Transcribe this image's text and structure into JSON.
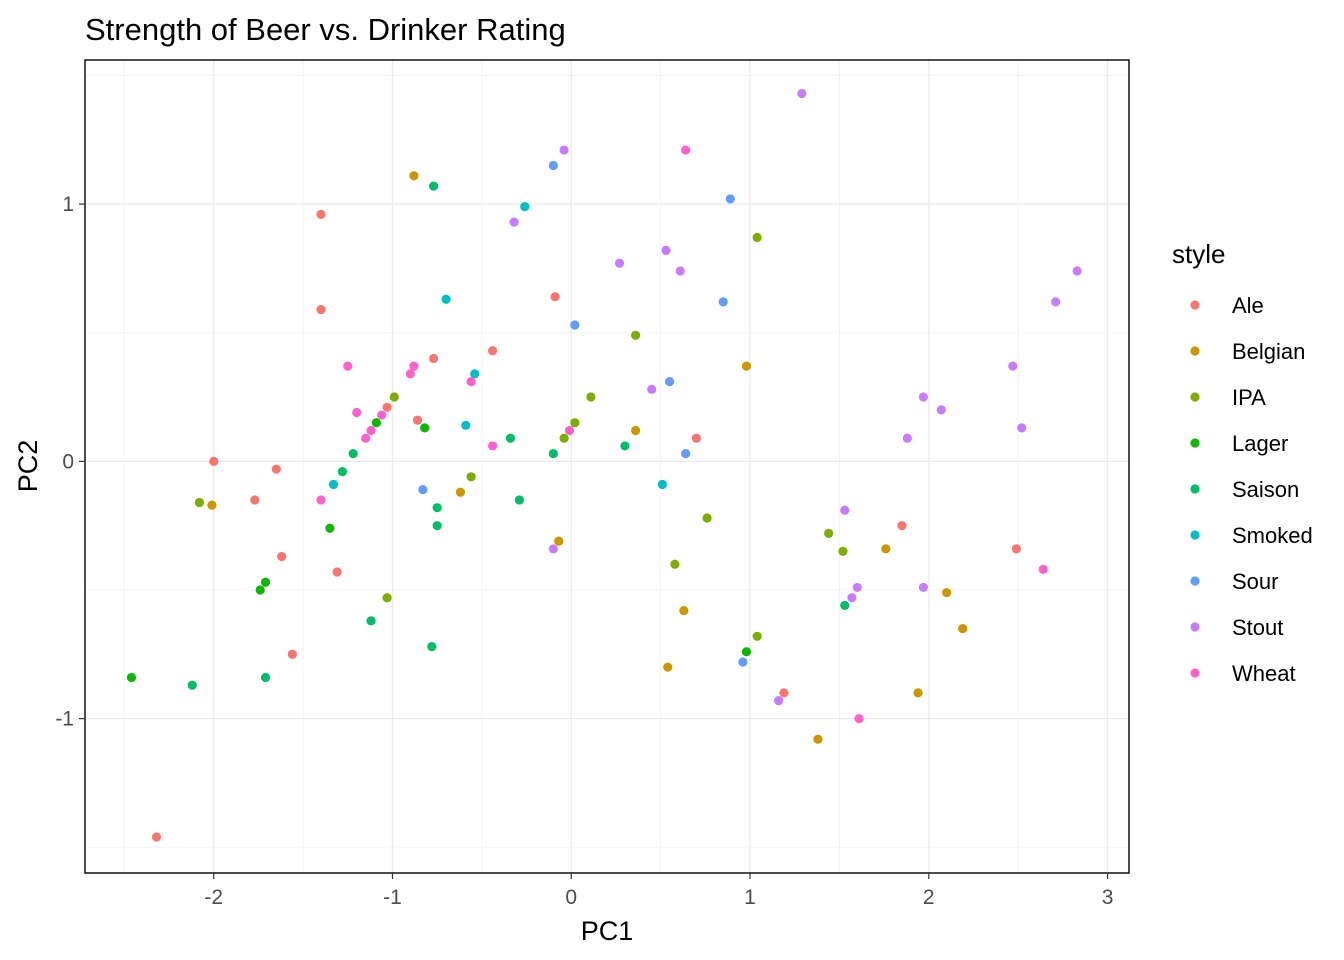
{
  "chart_data": {
    "type": "scatter",
    "title": "Strength of Beer vs. Drinker Rating",
    "xlabel": "PC1",
    "ylabel": "PC2",
    "xlim": [
      -2.72,
      3.12
    ],
    "ylim": [
      -1.6,
      1.56
    ],
    "x_ticks": [
      -2,
      -1,
      0,
      1,
      2,
      3
    ],
    "x_tick_labels": [
      "-2",
      "-1",
      "0",
      "1",
      "2",
      "3"
    ],
    "y_ticks": [
      -1,
      0,
      1
    ],
    "y_tick_labels": [
      "-1",
      "0",
      "1"
    ],
    "grid": true,
    "legend": {
      "title": "style",
      "position": "right"
    },
    "series": [
      {
        "name": "Ale",
        "color": "#F8766D",
        "points": [
          [
            -2.32,
            -1.46
          ],
          [
            -2.0,
            0.0
          ],
          [
            -1.77,
            -0.15
          ],
          [
            -1.65,
            -0.03
          ],
          [
            -1.62,
            -0.37
          ],
          [
            -1.56,
            -0.75
          ],
          [
            -1.4,
            0.96
          ],
          [
            -1.4,
            0.59
          ],
          [
            -1.31,
            -0.43
          ],
          [
            -1.03,
            0.21
          ],
          [
            -0.86,
            0.16
          ],
          [
            -0.77,
            0.4
          ],
          [
            -0.44,
            0.43
          ],
          [
            -0.09,
            0.64
          ],
          [
            0.7,
            0.09
          ],
          [
            1.19,
            -0.9
          ],
          [
            1.85,
            -0.25
          ],
          [
            2.49,
            -0.34
          ]
        ]
      },
      {
        "name": "Belgian",
        "color": "#CD9600",
        "points": [
          [
            -2.01,
            -0.17
          ],
          [
            -0.88,
            1.11
          ],
          [
            -0.62,
            -0.12
          ],
          [
            -0.07,
            -0.31
          ],
          [
            0.36,
            0.12
          ],
          [
            0.54,
            -0.8
          ],
          [
            0.63,
            -0.58
          ],
          [
            0.98,
            0.37
          ],
          [
            1.38,
            -1.08
          ],
          [
            1.76,
            -0.34
          ],
          [
            1.94,
            -0.9
          ],
          [
            2.1,
            -0.51
          ],
          [
            2.19,
            -0.65
          ]
        ]
      },
      {
        "name": "IPA",
        "color": "#7CAE00",
        "points": [
          [
            -2.08,
            -0.16
          ],
          [
            -1.03,
            -0.53
          ],
          [
            -0.99,
            0.25
          ],
          [
            -0.56,
            -0.06
          ],
          [
            -0.04,
            0.09
          ],
          [
            0.02,
            0.15
          ],
          [
            0.11,
            0.25
          ],
          [
            0.36,
            0.49
          ],
          [
            0.58,
            -0.4
          ],
          [
            0.76,
            -0.22
          ],
          [
            1.04,
            -0.68
          ],
          [
            1.04,
            0.87
          ],
          [
            1.44,
            -0.28
          ],
          [
            1.52,
            -0.35
          ]
        ]
      },
      {
        "name": "Lager",
        "color": "#0CB702",
        "points": [
          [
            -2.46,
            -0.84
          ],
          [
            -1.74,
            -0.5
          ],
          [
            -1.71,
            -0.47
          ],
          [
            -1.35,
            -0.26
          ],
          [
            -1.09,
            0.15
          ],
          [
            -0.82,
            0.13
          ],
          [
            0.98,
            -0.74
          ]
        ]
      },
      {
        "name": "Saison",
        "color": "#00BE67",
        "points": [
          [
            -2.12,
            -0.87
          ],
          [
            -1.71,
            -0.84
          ],
          [
            -1.28,
            -0.04
          ],
          [
            -1.22,
            0.03
          ],
          [
            -1.12,
            -0.62
          ],
          [
            -0.78,
            -0.72
          ],
          [
            -0.77,
            1.07
          ],
          [
            -0.75,
            -0.18
          ],
          [
            -0.75,
            -0.25
          ],
          [
            -0.34,
            0.09
          ],
          [
            -0.29,
            -0.15
          ],
          [
            -0.1,
            0.03
          ],
          [
            0.3,
            0.06
          ],
          [
            1.53,
            -0.56
          ]
        ]
      },
      {
        "name": "Smoked",
        "color": "#00BFC4",
        "points": [
          [
            -1.33,
            -0.09
          ],
          [
            -0.7,
            0.63
          ],
          [
            -0.59,
            0.14
          ],
          [
            -0.54,
            0.34
          ],
          [
            -0.26,
            0.99
          ],
          [
            0.51,
            -0.09
          ]
        ]
      },
      {
        "name": "Sour",
        "color": "#619CFF",
        "points": [
          [
            -0.83,
            -0.11
          ],
          [
            -0.1,
            1.15
          ],
          [
            0.02,
            0.53
          ],
          [
            0.55,
            0.31
          ],
          [
            0.64,
            0.03
          ],
          [
            0.85,
            0.62
          ],
          [
            0.89,
            1.02
          ],
          [
            0.96,
            -0.78
          ]
        ]
      },
      {
        "name": "Stout",
        "color": "#C77CFF",
        "points": [
          [
            -0.32,
            0.93
          ],
          [
            -0.1,
            -0.34
          ],
          [
            -0.04,
            1.21
          ],
          [
            0.27,
            0.77
          ],
          [
            0.45,
            0.28
          ],
          [
            0.53,
            0.82
          ],
          [
            0.61,
            0.74
          ],
          [
            1.16,
            -0.93
          ],
          [
            1.29,
            1.43
          ],
          [
            1.53,
            -0.19
          ],
          [
            1.57,
            -0.53
          ],
          [
            1.6,
            -0.49
          ],
          [
            1.88,
            0.09
          ],
          [
            1.97,
            0.25
          ],
          [
            1.97,
            -0.49
          ],
          [
            2.07,
            0.2
          ],
          [
            2.47,
            0.37
          ],
          [
            2.52,
            0.13
          ],
          [
            2.71,
            0.62
          ],
          [
            2.83,
            0.74
          ]
        ]
      },
      {
        "name": "Wheat",
        "color": "#FF61CC",
        "points": [
          [
            -1.4,
            -0.15
          ],
          [
            -1.25,
            0.37
          ],
          [
            -1.2,
            0.19
          ],
          [
            -1.15,
            0.09
          ],
          [
            -1.12,
            0.12
          ],
          [
            -1.06,
            0.18
          ],
          [
            -0.9,
            0.34
          ],
          [
            -0.88,
            0.37
          ],
          [
            -0.56,
            0.31
          ],
          [
            -0.44,
            0.06
          ],
          [
            -0.01,
            0.12
          ],
          [
            0.64,
            1.21
          ],
          [
            1.61,
            -1.0
          ],
          [
            2.64,
            -0.42
          ]
        ]
      }
    ]
  }
}
